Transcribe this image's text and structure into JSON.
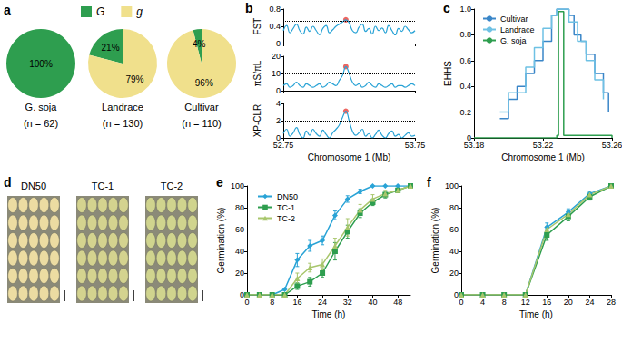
{
  "chart_data": [
    {
      "panel": "a",
      "type": "pie",
      "legend": "top",
      "categories": [
        "G",
        "g"
      ],
      "colors": [
        "#2e9e4f",
        "#f0e08c"
      ],
      "pies": [
        {
          "title": "G. soja",
          "subtitle": "(n = 62)",
          "values": [
            100,
            0
          ],
          "value_labels": [
            "100%",
            null
          ]
        },
        {
          "title": "Landrace",
          "subtitle": "(n = 130)",
          "values": [
            21,
            79
          ],
          "value_labels": [
            "21%",
            "79%"
          ]
        },
        {
          "title": "Cultivar",
          "subtitle": "(n = 110)",
          "values": [
            4,
            96
          ],
          "value_labels": [
            "4%",
            "96%"
          ]
        }
      ]
    },
    {
      "panel": "b",
      "type": "line",
      "xlabel": "Chromosome 1 (Mb)",
      "color": "#29a3d6",
      "xlim": [
        52.75,
        53.75
      ],
      "xticks": [
        52.75,
        53.75
      ],
      "x": [
        52.75,
        52.775,
        52.8,
        52.825,
        52.85,
        52.875,
        52.9,
        52.925,
        52.95,
        52.975,
        53,
        53.025,
        53.05,
        53.075,
        53.1,
        53.125,
        53.15,
        53.175,
        53.2,
        53.225,
        53.25,
        53.275,
        53.3,
        53.325,
        53.35,
        53.375,
        53.4,
        53.425,
        53.45,
        53.475,
        53.5,
        53.525,
        53.55,
        53.575,
        53.6,
        53.625,
        53.65,
        53.675,
        53.7,
        53.725,
        53.75
      ],
      "tracks": [
        {
          "ylabel": "FST",
          "ylim": [
            0,
            0.8
          ],
          "yticks": [
            0,
            0.4,
            0.8
          ],
          "threshold": 0.52,
          "tick_labels": "y",
          "values": [
            0.3,
            0.42,
            0.25,
            0.35,
            0.45,
            0.3,
            0.22,
            0.38,
            0.28,
            0.4,
            0.3,
            0.2,
            0.35,
            0.42,
            0.25,
            0.32,
            0.4,
            0.45,
            0.5,
            0.55,
            0.48,
            0.3,
            0.25,
            0.38,
            0.45,
            0.28,
            0.35,
            0.22,
            0.4,
            0.3,
            0.36,
            0.25,
            0.42,
            0.3,
            0.2,
            0.35,
            0.28,
            0.4,
            0.32,
            0.25,
            0.3
          ],
          "highlight": {
            "x": 53.225,
            "y": 0.55,
            "color": "#e8403a"
          }
        },
        {
          "ylabel": "πS/πL",
          "ylim": [
            0,
            20
          ],
          "yticks": [
            0,
            10,
            20
          ],
          "threshold": 10,
          "tick_labels": "y",
          "values": [
            3,
            4,
            2,
            3,
            5,
            3,
            2,
            4,
            3,
            2,
            3,
            4,
            2,
            3,
            5,
            4,
            3,
            6,
            9,
            14,
            10,
            5,
            3,
            4,
            2,
            3,
            5,
            3,
            2,
            4,
            3,
            2,
            3,
            4,
            2,
            3,
            3,
            2,
            3,
            4,
            3
          ],
          "highlight": {
            "x": 53.225,
            "y": 14,
            "color": "#e8403a"
          }
        },
        {
          "ylabel": "XP-CLR",
          "ylim": [
            0,
            4
          ],
          "yticks": [
            0,
            2,
            4
          ],
          "threshold": 2,
          "values": [
            0.5,
            1,
            0.2,
            0.6,
            1.2,
            0.4,
            0,
            0.8,
            0.3,
            1,
            0.5,
            0.2,
            0.9,
            0.4,
            0,
            0.6,
            1,
            1.5,
            2.4,
            3.1,
            2,
            0.8,
            0.3,
            0.6,
            1,
            0.2,
            0.5,
            0,
            0.4,
            0.9,
            0.3,
            0,
            0.5,
            0.8,
            0.2,
            0.4,
            0,
            0.3,
            0.6,
            0.2,
            0.3
          ],
          "highlight": {
            "x": 53.225,
            "y": 3.1,
            "color": "#e8403a"
          }
        }
      ]
    },
    {
      "panel": "c",
      "type": "line",
      "line_style": "step",
      "legend": "top-left",
      "xlabel": "Chromosome 1 (Mb)",
      "ylabel": "EHHS",
      "xlim": [
        53.18,
        53.26
      ],
      "xticks": [
        53.18,
        53.22,
        53.26
      ],
      "ylim": [
        0,
        1
      ],
      "yticks": [
        0,
        0.2,
        0.4,
        0.6,
        0.8,
        {
          "value": 1,
          "label": "1.0"
        }
      ],
      "series": [
        {
          "name": "Cultivar",
          "color": "#3a86c8",
          "x": [
            53.195,
            53.2,
            53.205,
            53.21,
            53.215,
            53.22,
            53.225,
            53.228,
            53.232,
            53.235,
            53.238,
            53.242,
            53.245,
            53.25,
            53.255,
            53.258
          ],
          "values": [
            0.15,
            0.3,
            0.4,
            0.5,
            0.6,
            0.75,
            0.95,
            1,
            1,
            0.95,
            0.8,
            0.75,
            0.65,
            0.5,
            0.35,
            0.2
          ]
        },
        {
          "name": "Landrace",
          "color": "#6ec1e4",
          "x": [
            53.195,
            53.2,
            53.21,
            53.215,
            53.22,
            53.225,
            53.228,
            53.232,
            53.235,
            53.24,
            53.245,
            53.25,
            53.255
          ],
          "values": [
            0.2,
            0.35,
            0.55,
            0.7,
            0.85,
            0.95,
            1,
            1,
            0.9,
            0.75,
            0.6,
            0.45,
            0.3
          ]
        },
        {
          "name": "G. soja",
          "color": "#2e9e4f",
          "x": [
            53.18,
            53.225,
            53.228,
            53.229,
            53.231,
            53.232,
            53.26
          ],
          "values": [
            0,
            0,
            0.02,
            0.98,
            0.98,
            0.02,
            0
          ]
        }
      ]
    },
    {
      "panel": "d",
      "type": "image",
      "labels": [
        "DN50",
        "TC-1",
        "TC-2"
      ]
    },
    {
      "panel": "e",
      "type": "line",
      "legend": "top-left",
      "xlabel": "Time (h)",
      "ylabel": "Germination (%)",
      "xlim": [
        0,
        52
      ],
      "xticks": [
        0,
        8,
        16,
        24,
        32,
        40,
        48
      ],
      "ylim": [
        0,
        100
      ],
      "yticks": [
        0,
        20,
        40,
        60,
        80,
        100
      ],
      "x": [
        0,
        4,
        8,
        12,
        16,
        20,
        24,
        28,
        32,
        36,
        40,
        44,
        48,
        52
      ],
      "series": [
        {
          "name": "DN50",
          "color": "#29a3d6",
          "marker": "diamond",
          "values": [
            0,
            0,
            0,
            5,
            32,
            45,
            50,
            73,
            88,
            95,
            100,
            100,
            100,
            100
          ],
          "errors": [
            0,
            0,
            0,
            0,
            6,
            5,
            4,
            4,
            3,
            2,
            0,
            0,
            0,
            0
          ]
        },
        {
          "name": "TC-1",
          "color": "#2e9e4f",
          "marker": "square",
          "values": [
            0,
            0,
            0,
            0,
            8,
            12,
            20,
            40,
            58,
            75,
            85,
            92,
            96,
            100
          ],
          "errors": [
            0,
            0,
            0,
            0,
            3,
            4,
            4,
            8,
            6,
            4,
            3,
            3,
            2,
            0
          ]
        },
        {
          "name": "TC-2",
          "color": "#a8c66c",
          "marker": "triangle",
          "values": [
            0,
            0,
            0,
            0,
            15,
            25,
            28,
            45,
            62,
            78,
            88,
            93,
            96,
            100
          ],
          "errors": [
            0,
            0,
            0,
            0,
            5,
            4,
            5,
            7,
            8,
            5,
            4,
            3,
            2,
            0
          ]
        }
      ]
    },
    {
      "panel": "f",
      "type": "line",
      "xlabel": "Time (h)",
      "ylabel": "Germination (%)",
      "xlim": [
        0,
        28
      ],
      "xticks": [
        0,
        4,
        8,
        12,
        16,
        20,
        24,
        28
      ],
      "ylim": [
        0,
        100
      ],
      "yticks": [
        0,
        20,
        40,
        60,
        80,
        100
      ],
      "x": [
        0,
        4,
        8,
        12,
        16,
        20,
        24,
        28
      ],
      "series": [
        {
          "name": "DN50",
          "color": "#29a3d6",
          "marker": "diamond",
          "values": [
            0,
            0,
            0,
            0,
            62,
            76,
            93,
            100
          ],
          "errors": [
            0,
            0,
            0,
            0,
            4,
            3,
            2,
            0
          ]
        },
        {
          "name": "TC-1",
          "color": "#2e9e4f",
          "marker": "square",
          "values": [
            0,
            0,
            0,
            0,
            55,
            72,
            90,
            100
          ],
          "errors": [
            0,
            0,
            0,
            0,
            5,
            4,
            3,
            0
          ]
        },
        {
          "name": "TC-2",
          "color": "#a8c66c",
          "marker": "triangle",
          "values": [
            0,
            0,
            0,
            0,
            60,
            74,
            92,
            100
          ],
          "errors": [
            0,
            0,
            0,
            0,
            3,
            3,
            2,
            0
          ]
        }
      ]
    }
  ]
}
